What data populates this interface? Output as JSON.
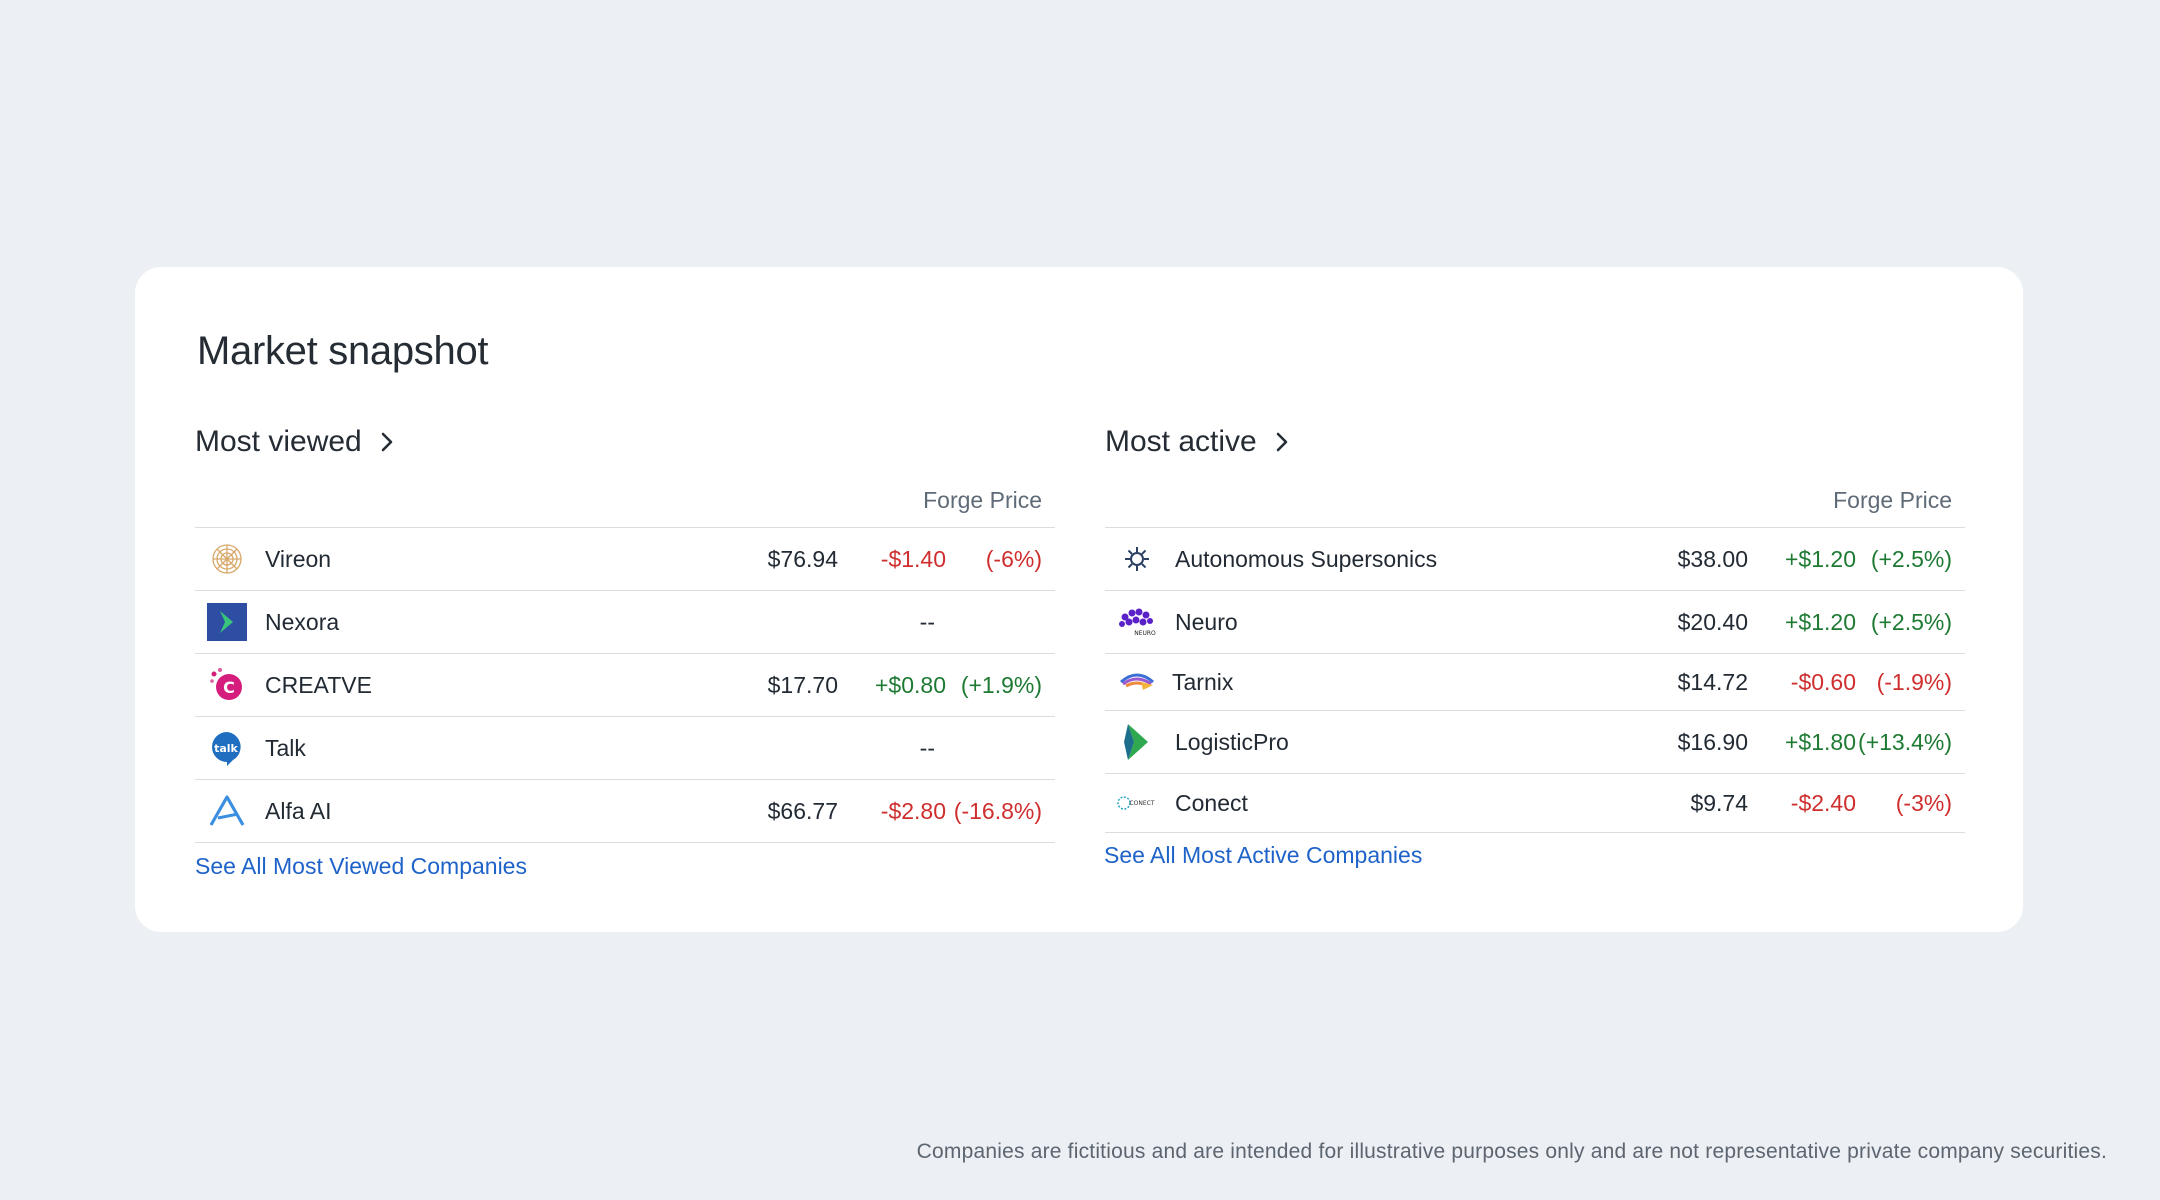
{
  "card": {
    "title": "Market snapshot"
  },
  "most_viewed": {
    "heading": "Most viewed",
    "column_header": "Forge Price",
    "rows": [
      {
        "name": "Vireon",
        "logo": "vireon-logo",
        "price": "$76.94",
        "change": "-$1.40",
        "percent": "(-6%)",
        "direction": "down"
      },
      {
        "name": "Nexora",
        "logo": "nexora-logo",
        "price": "--",
        "change": "",
        "percent": "",
        "direction": "none"
      },
      {
        "name": "CREATVE",
        "logo": "creatve-logo",
        "price": "$17.70",
        "change": "+$0.80",
        "percent": "(+1.9%)",
        "direction": "up"
      },
      {
        "name": "Talk",
        "logo": "talk-logo",
        "price": "--",
        "change": "",
        "percent": "",
        "direction": "none"
      },
      {
        "name": "Alfa AI",
        "logo": "alfa-ai-logo",
        "price": "$66.77",
        "change": "-$2.80",
        "percent": "(-16.8%)",
        "direction": "down"
      }
    ],
    "see_all": "See All Most Viewed Companies"
  },
  "most_active": {
    "heading": "Most active",
    "column_header": "Forge Price",
    "rows": [
      {
        "name": "Autonomous Supersonics",
        "logo": "autonomous-supersonics-logo",
        "price": "$38.00",
        "change": "+$1.20",
        "percent": "(+2.5%)",
        "direction": "up"
      },
      {
        "name": "Neuro",
        "logo": "neuro-logo",
        "price": "$20.40",
        "change": "+$1.20",
        "percent": "(+2.5%)",
        "direction": "up"
      },
      {
        "name": "Tarnix",
        "logo": "tarnix-logo",
        "price": "$14.72",
        "change": "-$0.60",
        "percent": "(-1.9%)",
        "direction": "down"
      },
      {
        "name": "LogisticPro",
        "logo": "logisticpro-logo",
        "price": "$16.90",
        "change": "+$1.80",
        "percent": "(+13.4%)",
        "direction": "up"
      },
      {
        "name": "Conect",
        "logo": "conect-logo",
        "price": "$9.74",
        "change": "-$2.40",
        "percent": "(-3%)",
        "direction": "down"
      }
    ],
    "see_all": "See All Most Active Companies"
  },
  "colors": {
    "up": "#1e7a33",
    "down": "#cf2e2e",
    "link": "#1f63c9",
    "background": "#eceff3"
  },
  "footnote": "Companies are fictitious and are intended for illustrative purposes only and are not representative private company securities."
}
